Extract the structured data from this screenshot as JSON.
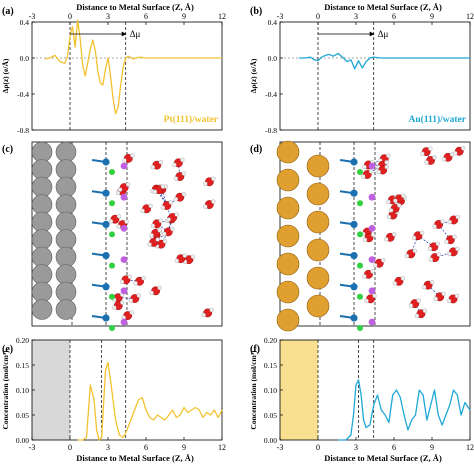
{
  "chart_data": [
    {
      "type": "line",
      "panel_label": "(a)",
      "top_axis_label": "Distance to Metal Surface (Z, Å)",
      "ylabel": "Δρ(z) (e/Å)",
      "legend": "Pt(111)/water",
      "color": "#f2c230",
      "arrow_label": "Δμ",
      "xlim": [
        -3,
        12
      ],
      "ylim": [
        -0.8,
        0.4
      ],
      "xticks": [
        -3,
        0,
        3,
        6,
        9,
        12
      ],
      "yticks": [
        0.4,
        0.0,
        -0.4,
        -0.8
      ],
      "dashed_x": [
        0,
        4.4
      ],
      "x": [
        -2.0,
        -1.6,
        -1.2,
        -0.8,
        -0.4,
        -0.2,
        0,
        0.2,
        0.4,
        0.6,
        0.8,
        1.0,
        1.2,
        1.4,
        1.6,
        1.8,
        2.0,
        2.2,
        2.4,
        2.6,
        2.8,
        3.0,
        3.2,
        3.4,
        3.6,
        3.8,
        4.0,
        4.2,
        4.4,
        4.6,
        5.0,
        5.5,
        6.0,
        7.0,
        8.0,
        9.0,
        10.0,
        11.0,
        12.0
      ],
      "values": [
        -0.01,
        0.0,
        0.03,
        -0.04,
        -0.06,
        0.02,
        0.24,
        0.35,
        0.12,
        0.42,
        0.22,
        -0.08,
        -0.2,
        -0.06,
        0.1,
        0.2,
        0.08,
        -0.15,
        -0.28,
        -0.3,
        -0.12,
        0.0,
        -0.2,
        -0.45,
        -0.62,
        -0.55,
        -0.3,
        -0.1,
        0.0,
        0.02,
        -0.01,
        0.01,
        0.0,
        0.0,
        0.0,
        0.0,
        0.0,
        0.0,
        0.0
      ]
    },
    {
      "type": "line",
      "panel_label": "(b)",
      "top_axis_label": "Distance to Metal Surface (Z, Å)",
      "ylabel": "Δρ(z) (e/Å)",
      "legend": "Au(111)/water",
      "color": "#1ea8d6",
      "arrow_label": "Δμ",
      "xlim": [
        -3,
        12
      ],
      "ylim": [
        -0.8,
        0.4
      ],
      "xticks": [
        -3,
        0,
        3,
        6,
        9,
        12
      ],
      "yticks": [
        0.4,
        0.0,
        -0.4,
        -0.8
      ],
      "dashed_x": [
        0,
        4.4
      ],
      "x": [
        -1.5,
        -1.0,
        -0.6,
        -0.3,
        0,
        0.3,
        0.6,
        0.9,
        1.2,
        1.6,
        2.0,
        2.3,
        2.6,
        2.9,
        3.2,
        3.5,
        3.8,
        4.1,
        4.4,
        5.0,
        6.0,
        8.0,
        10.0,
        12.0
      ],
      "values": [
        0.0,
        0.0,
        0.01,
        -0.02,
        -0.03,
        0.01,
        0.03,
        0.04,
        0.02,
        0.05,
        0.0,
        -0.04,
        -0.02,
        -0.12,
        -0.03,
        -0.11,
        -0.04,
        0.0,
        0.01,
        0.0,
        0.0,
        0.0,
        0.0,
        0.0
      ]
    },
    {
      "type": "line",
      "panel_label": "(e)",
      "bottom_axis_label": "Distance to Metal Surface (Z, Å)",
      "ylabel": "Concentration (mol/cm³)",
      "color": "#f2c230",
      "metal_fill": "#d8d8d8",
      "xlim": [
        -3,
        12
      ],
      "ylim": [
        0,
        0.2
      ],
      "xticks": [
        -3,
        0,
        3,
        6,
        9,
        12
      ],
      "yticks": [
        0.0,
        0.05,
        0.1,
        0.15,
        0.2
      ],
      "dashed_x": [
        0,
        2.5,
        4.4
      ],
      "x": [
        0.6,
        1.0,
        1.3,
        1.6,
        1.9,
        2.1,
        2.3,
        2.5,
        2.8,
        3.0,
        3.3,
        3.6,
        3.9,
        4.2,
        4.5,
        4.8,
        5.1,
        5.4,
        5.7,
        6.0,
        6.3,
        6.6,
        6.9,
        7.2,
        7.5,
        7.8,
        8.1,
        8.4,
        8.7,
        9.0,
        9.3,
        9.6,
        9.9,
        10.2,
        10.5,
        10.8,
        11.1,
        11.4,
        11.7,
        12.0
      ],
      "values": [
        0.0,
        0.0,
        0.005,
        0.11,
        0.08,
        0.02,
        0.0,
        0.005,
        0.14,
        0.155,
        0.1,
        0.04,
        0.01,
        0.005,
        0.02,
        0.04,
        0.06,
        0.08,
        0.085,
        0.06,
        0.045,
        0.04,
        0.05,
        0.045,
        0.04,
        0.05,
        0.06,
        0.045,
        0.05,
        0.065,
        0.055,
        0.06,
        0.065,
        0.06,
        0.045,
        0.055,
        0.05,
        0.06,
        0.045,
        0.06
      ]
    },
    {
      "type": "line",
      "panel_label": "(f)",
      "bottom_axis_label": "Distance to Metal Surface (Z, Å)",
      "ylabel": "Concentration (mol/cm³)",
      "color": "#1ea8d6",
      "metal_fill": "#f8e090",
      "xlim": [
        -3,
        12
      ],
      "ylim": [
        0,
        0.2
      ],
      "xticks": [
        -3,
        0,
        3,
        6,
        9,
        12
      ],
      "yticks": [
        0.0,
        0.05,
        0.1,
        0.15,
        0.2
      ],
      "dashed_x": [
        0,
        3.2,
        4.4
      ],
      "x": [
        1.6,
        2.2,
        2.6,
        2.8,
        3.0,
        3.2,
        3.4,
        3.6,
        3.8,
        4.1,
        4.4,
        4.7,
        5.0,
        5.3,
        5.6,
        5.9,
        6.2,
        6.5,
        6.8,
        7.1,
        7.4,
        7.7,
        8.0,
        8.3,
        8.6,
        8.9,
        9.2,
        9.5,
        9.8,
        10.1,
        10.4,
        10.7,
        11.0,
        11.3,
        11.6,
        12.0
      ],
      "values": [
        0.0,
        0.0,
        0.01,
        0.05,
        0.11,
        0.12,
        0.09,
        0.04,
        0.025,
        0.03,
        0.07,
        0.09,
        0.06,
        0.05,
        0.035,
        0.09,
        0.1,
        0.085,
        0.05,
        0.02,
        0.04,
        0.05,
        0.1,
        0.09,
        0.04,
        0.07,
        0.1,
        0.05,
        0.03,
        0.05,
        0.07,
        0.1,
        0.09,
        0.05,
        0.075,
        0.06
      ]
    }
  ],
  "structures": [
    {
      "panel_label": "(c)",
      "metal_color": "#9a9a9a",
      "metal_edge": "#5a5a5a"
    },
    {
      "panel_label": "(d)",
      "metal_color": "#e0a030",
      "metal_edge": "#8a5a10"
    }
  ],
  "atom_colors": {
    "oxygen": "#e02020",
    "hydrogen": "#f0f0f0",
    "hydroxyl_h": "#c060e0",
    "adsorbed_o": "#1a70b0",
    "adsorbed_h": "#30d040",
    "hbond": "#2030b0"
  }
}
